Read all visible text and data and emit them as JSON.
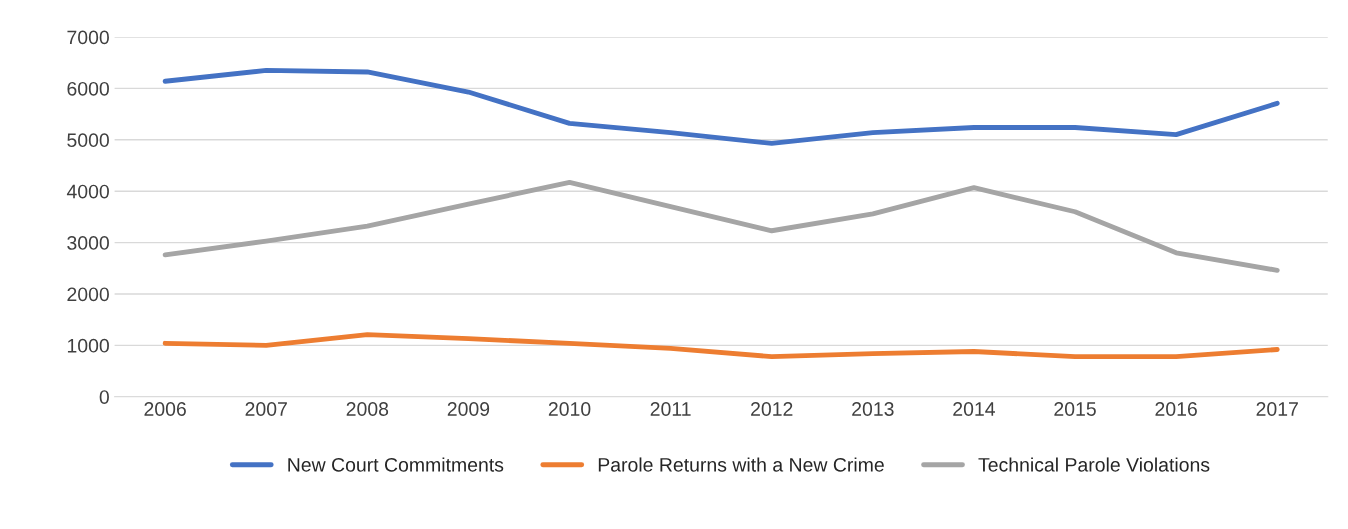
{
  "chart_data": {
    "type": "line",
    "categories": [
      "2006",
      "2007",
      "2008",
      "2009",
      "2010",
      "2011",
      "2012",
      "2013",
      "2014",
      "2015",
      "2016",
      "2017"
    ],
    "series": [
      {
        "name": "New Court Commitments",
        "color": "#4472c4",
        "values": [
          6140,
          6350,
          6320,
          5930,
          5320,
          5140,
          4930,
          5140,
          5240,
          5240,
          5100,
          5710
        ]
      },
      {
        "name": "Parole Returns with a New Crime",
        "color": "#ed7d31",
        "values": [
          1040,
          1000,
          1210,
          1130,
          1040,
          940,
          780,
          840,
          880,
          780,
          780,
          920
        ]
      },
      {
        "name": "Technical Parole Violations",
        "color": "#a5a5a5",
        "values": [
          2760,
          3030,
          3320,
          3750,
          4170,
          3700,
          3230,
          3560,
          4070,
          3600,
          2800,
          2460
        ]
      }
    ],
    "ylim": [
      0,
      7000
    ],
    "yticks": [
      0,
      1000,
      2000,
      3000,
      4000,
      5000,
      6000,
      7000
    ],
    "grid": "y",
    "legend": "bottom",
    "marker": "none",
    "line_style": "solid"
  }
}
